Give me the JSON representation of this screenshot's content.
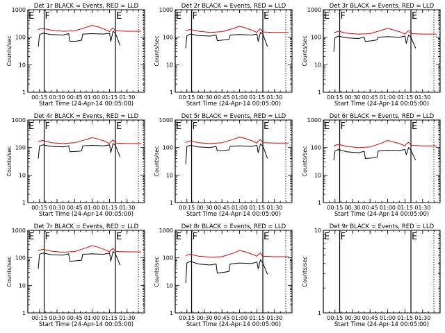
{
  "chart_data": [
    {
      "type": "line",
      "title": "Det 1r  BLACK = Events, RED = LLD",
      "xlabel": "Start Time (24-Apr-14 00:05:00)",
      "ylabel": "Counts/sec",
      "xlim": [
        "00:05",
        "01:45"
      ],
      "ylim": [
        1,
        1000
      ],
      "yscale": "log",
      "x_ticks": [
        "00:15",
        "00:30",
        "00:45",
        "01:00",
        "01:15",
        "01:30"
      ],
      "y_ticks": [
        "1",
        "10",
        "100",
        "1000"
      ],
      "markers": [
        {
          "label": "E",
          "time": "00:05"
        },
        {
          "label": "F",
          "time": "00:19"
        },
        {
          "label": "E",
          "time": "01:20"
        }
      ],
      "series": [
        {
          "name": "Events",
          "color": "#000000",
          "x": [
            "00:14",
            "00:15",
            "00:18",
            "00:25",
            "00:35",
            "00:40",
            "00:41",
            "00:47",
            "00:51",
            "00:52",
            "01:00",
            "01:10",
            "01:15",
            "01:16",
            "01:18",
            "01:20",
            "01:24"
          ],
          "y": [
            45,
            125,
            140,
            125,
            120,
            135,
            70,
            72,
            78,
            130,
            135,
            130,
            140,
            70,
            165,
            140,
            50
          ]
        },
        {
          "name": "LLD",
          "color": "#dd0000",
          "x": [
            "00:14",
            "00:15",
            "00:18",
            "00:25",
            "00:35",
            "00:45",
            "00:55",
            "01:00",
            "01:05",
            "01:10",
            "01:15",
            "01:16",
            "01:18",
            "01:20",
            "01:30",
            "01:42"
          ],
          "y": [
            190,
            200,
            210,
            180,
            165,
            170,
            230,
            270,
            240,
            200,
            160,
            190,
            220,
            170,
            165,
            165
          ]
        }
      ]
    },
    {
      "type": "line",
      "title": "Det 2r  BLACK = Events, RED = LLD",
      "xlabel": "Start Time (24-Apr-14 00:05:00)",
      "ylabel": "Counts/sec",
      "xlim": [
        "00:05",
        "01:45"
      ],
      "ylim": [
        1,
        1000
      ],
      "yscale": "log",
      "x_ticks": [
        "00:15",
        "00:30",
        "00:45",
        "01:00",
        "01:15",
        "01:30"
      ],
      "y_ticks": [
        "1",
        "10",
        "100",
        "1000"
      ],
      "markers": [
        {
          "label": "E",
          "time": "00:05"
        },
        {
          "label": "F",
          "time": "00:19"
        },
        {
          "label": "E",
          "time": "01:20"
        }
      ],
      "series": [
        {
          "name": "Events",
          "color": "#000000",
          "x": [
            "00:14",
            "00:15",
            "00:18",
            "00:25",
            "00:35",
            "00:40",
            "00:41",
            "00:47",
            "00:51",
            "00:52",
            "01:00",
            "01:10",
            "01:15",
            "01:16",
            "01:18",
            "01:20",
            "01:24"
          ],
          "y": [
            40,
            115,
            130,
            115,
            110,
            120,
            75,
            80,
            85,
            120,
            125,
            120,
            130,
            70,
            150,
            130,
            45
          ]
        },
        {
          "name": "LLD",
          "color": "#dd0000",
          "x": [
            "00:14",
            "00:15",
            "00:18",
            "00:25",
            "00:35",
            "00:45",
            "00:55",
            "01:00",
            "01:05",
            "01:10",
            "01:15",
            "01:16",
            "01:18",
            "01:20",
            "01:30",
            "01:42"
          ],
          "y": [
            170,
            180,
            190,
            165,
            150,
            160,
            210,
            250,
            220,
            185,
            150,
            175,
            200,
            155,
            150,
            150
          ]
        }
      ]
    },
    {
      "type": "line",
      "title": "Det 3r  BLACK = Events, RED = LLD",
      "xlabel": "Start Time (24-Apr-14 00:05:00)",
      "ylabel": "Counts/sec",
      "xlim": [
        "00:05",
        "01:45"
      ],
      "ylim": [
        1,
        1000
      ],
      "yscale": "log",
      "x_ticks": [
        "00:15",
        "00:30",
        "00:45",
        "01:00",
        "01:15",
        "01:30"
      ],
      "y_ticks": [
        "1",
        "10",
        "100",
        "1000"
      ],
      "markers": [
        {
          "label": "E",
          "time": "00:05"
        },
        {
          "label": "F",
          "time": "00:19"
        },
        {
          "label": "E",
          "time": "01:20"
        }
      ],
      "series": [
        {
          "name": "Events",
          "color": "#000000",
          "x": [
            "00:14",
            "00:15",
            "00:18",
            "00:25",
            "00:35",
            "00:40",
            "00:41",
            "00:47",
            "00:51",
            "00:52",
            "01:00",
            "01:10",
            "01:15",
            "01:16",
            "01:18",
            "01:20",
            "01:24"
          ],
          "y": [
            30,
            95,
            110,
            95,
            90,
            100,
            70,
            75,
            80,
            100,
            105,
            100,
            110,
            60,
            120,
            100,
            40
          ]
        },
        {
          "name": "LLD",
          "color": "#dd0000",
          "x": [
            "00:14",
            "00:15",
            "00:18",
            "00:25",
            "00:35",
            "00:45",
            "00:55",
            "01:00",
            "01:05",
            "01:10",
            "01:15",
            "01:16",
            "01:18",
            "01:20",
            "01:30",
            "01:42"
          ],
          "y": [
            140,
            150,
            165,
            140,
            130,
            135,
            180,
            210,
            185,
            160,
            130,
            150,
            175,
            135,
            130,
            130
          ]
        }
      ]
    },
    {
      "type": "line",
      "title": "Det 4r  BLACK = Events, RED = LLD",
      "xlabel": "Start Time (24-Apr-14 00:05:00)",
      "ylabel": "Counts/sec",
      "xlim": [
        "00:05",
        "01:45"
      ],
      "ylim": [
        1,
        1000
      ],
      "yscale": "log",
      "x_ticks": [
        "00:15",
        "00:30",
        "00:45",
        "01:00",
        "01:15",
        "01:30"
      ],
      "y_ticks": [
        "1",
        "10",
        "100",
        "1000"
      ],
      "markers": [
        {
          "label": "E",
          "time": "00:05"
        },
        {
          "label": "F",
          "time": "00:19"
        },
        {
          "label": "E",
          "time": "01:20"
        }
      ],
      "series": [
        {
          "name": "Events",
          "color": "#000000",
          "x": [
            "00:14",
            "00:15",
            "00:18",
            "00:25",
            "00:35",
            "00:40",
            "00:41",
            "00:47",
            "00:51",
            "00:52",
            "01:00",
            "01:10",
            "01:15",
            "01:16",
            "01:18",
            "01:20",
            "01:24"
          ],
          "y": [
            40,
            115,
            125,
            110,
            105,
            115,
            70,
            72,
            75,
            115,
            120,
            115,
            125,
            65,
            140,
            120,
            45
          ]
        },
        {
          "name": "LLD",
          "color": "#dd0000",
          "x": [
            "00:14",
            "00:15",
            "00:18",
            "00:25",
            "00:35",
            "00:45",
            "00:55",
            "01:00",
            "01:05",
            "01:10",
            "01:15",
            "01:16",
            "01:18",
            "01:20",
            "01:30",
            "01:42"
          ],
          "y": [
            160,
            170,
            180,
            150,
            140,
            150,
            195,
            230,
            205,
            175,
            140,
            165,
            190,
            145,
            140,
            140
          ]
        }
      ]
    },
    {
      "type": "line",
      "title": "Det 5r  BLACK = Events, RED = LLD",
      "xlabel": "Start Time (24-Apr-14 00:05:00)",
      "ylabel": "Counts/sec",
      "xlim": [
        "00:05",
        "01:45"
      ],
      "ylim": [
        1,
        1000
      ],
      "yscale": "log",
      "x_ticks": [
        "00:15",
        "00:30",
        "00:45",
        "01:00",
        "01:15",
        "01:30"
      ],
      "y_ticks": [
        "1",
        "10",
        "100",
        "1000"
      ],
      "markers": [
        {
          "label": "E",
          "time": "00:05"
        },
        {
          "label": "F",
          "time": "00:19"
        },
        {
          "label": "E",
          "time": "01:20"
        }
      ],
      "series": [
        {
          "name": "Events",
          "color": "#000000",
          "x": [
            "00:14",
            "00:15",
            "00:18",
            "00:25",
            "00:35",
            "00:40",
            "00:41",
            "00:47",
            "00:51",
            "00:52",
            "01:00",
            "01:10",
            "01:15",
            "01:16",
            "01:18",
            "01:20",
            "01:24"
          ],
          "y": [
            25,
            110,
            120,
            105,
            100,
            110,
            75,
            78,
            82,
            110,
            115,
            110,
            120,
            65,
            135,
            115,
            40
          ]
        },
        {
          "name": "LLD",
          "color": "#dd0000",
          "x": [
            "00:14",
            "00:15",
            "00:18",
            "00:25",
            "00:35",
            "00:45",
            "00:55",
            "01:00",
            "01:05",
            "01:10",
            "01:15",
            "01:16",
            "01:18",
            "01:20",
            "01:30",
            "01:42"
          ],
          "y": [
            150,
            160,
            175,
            150,
            140,
            150,
            200,
            240,
            215,
            180,
            145,
            170,
            195,
            150,
            145,
            145
          ]
        }
      ]
    },
    {
      "type": "line",
      "title": "Det 6r  BLACK = Events, RED = LLD",
      "xlabel": "Start Time (24-Apr-14 00:05:00)",
      "ylabel": "Counts/sec",
      "xlim": [
        "00:05",
        "01:45"
      ],
      "ylim": [
        1,
        1000
      ],
      "yscale": "log",
      "x_ticks": [
        "00:15",
        "00:30",
        "00:45",
        "01:00",
        "01:15",
        "01:30"
      ],
      "y_ticks": [
        "1",
        "10",
        "100",
        "1000"
      ],
      "markers": [
        {
          "label": "E",
          "time": "00:05"
        },
        {
          "label": "F",
          "time": "00:19"
        },
        {
          "label": "E",
          "time": "01:20"
        }
      ],
      "series": [
        {
          "name": "Events",
          "color": "#000000",
          "x": [
            "00:14",
            "00:15",
            "00:18",
            "00:25",
            "00:35",
            "00:40",
            "00:41",
            "00:47",
            "00:51",
            "00:52",
            "01:00",
            "01:10",
            "01:15",
            "01:16",
            "01:18",
            "01:20",
            "01:24"
          ],
          "y": [
            35,
            75,
            85,
            70,
            65,
            72,
            40,
            42,
            45,
            75,
            80,
            78,
            85,
            55,
            100,
            80,
            35
          ]
        },
        {
          "name": "LLD",
          "color": "#dd0000",
          "x": [
            "00:14",
            "00:15",
            "00:18",
            "00:25",
            "00:35",
            "00:45",
            "00:55",
            "01:00",
            "01:05",
            "01:10",
            "01:15",
            "01:16",
            "01:18",
            "01:20",
            "01:30",
            "01:42"
          ],
          "y": [
            110,
            120,
            130,
            110,
            100,
            105,
            145,
            180,
            160,
            140,
            115,
            135,
            155,
            120,
            115,
            115
          ]
        }
      ]
    },
    {
      "type": "line",
      "title": "Det 7r  BLACK = Events, RED = LLD",
      "xlabel": "Start Time (24-Apr-14 00:05:00)",
      "ylabel": "Counts/sec",
      "xlim": [
        "00:05",
        "01:45"
      ],
      "ylim": [
        1,
        1000
      ],
      "yscale": "log",
      "x_ticks": [
        "00:15",
        "00:30",
        "00:45",
        "01:00",
        "01:15",
        "01:30"
      ],
      "y_ticks": [
        "1",
        "10",
        "100",
        "1000"
      ],
      "markers": [
        {
          "label": "E",
          "time": "00:05"
        },
        {
          "label": "F",
          "time": "00:19"
        },
        {
          "label": "E",
          "time": "01:20"
        }
      ],
      "series": [
        {
          "name": "Events",
          "color": "#000000",
          "x": [
            "00:14",
            "00:15",
            "00:18",
            "00:25",
            "00:35",
            "00:40",
            "00:41",
            "00:47",
            "00:51",
            "00:52",
            "01:00",
            "01:10",
            "01:15",
            "01:16",
            "01:18",
            "01:20",
            "01:24"
          ],
          "y": [
            40,
            135,
            150,
            130,
            125,
            140,
            75,
            78,
            82,
            135,
            140,
            135,
            150,
            75,
            170,
            140,
            55
          ]
        },
        {
          "name": "LLD",
          "color": "#dd0000",
          "x": [
            "00:14",
            "00:15",
            "00:18",
            "00:25",
            "00:35",
            "00:45",
            "00:55",
            "01:00",
            "01:05",
            "01:10",
            "01:15",
            "01:16",
            "01:18",
            "01:20",
            "01:30",
            "01:42"
          ],
          "y": [
            180,
            190,
            205,
            175,
            160,
            170,
            230,
            275,
            245,
            205,
            165,
            190,
            220,
            170,
            165,
            165
          ]
        }
      ]
    },
    {
      "type": "line",
      "title": "Det 8r  BLACK = Events, RED = LLD",
      "xlabel": "Start Time (24-Apr-14 00:05:00)",
      "ylabel": "Counts/sec",
      "xlim": [
        "00:05",
        "01:45"
      ],
      "ylim": [
        1,
        1000
      ],
      "yscale": "log",
      "x_ticks": [
        "00:15",
        "00:30",
        "00:45",
        "01:00",
        "01:15",
        "01:30"
      ],
      "y_ticks": [
        "1",
        "10",
        "100",
        "1000"
      ],
      "markers": [
        {
          "label": "E",
          "time": "00:05"
        },
        {
          "label": "F",
          "time": "00:19"
        },
        {
          "label": "E",
          "time": "01:20"
        }
      ],
      "series": [
        {
          "name": "Events",
          "color": "#000000",
          "x": [
            "00:14",
            "00:15",
            "00:18",
            "00:25",
            "00:35",
            "00:40",
            "00:41",
            "00:47",
            "00:51",
            "00:52",
            "01:00",
            "01:10",
            "01:15",
            "01:16",
            "01:18",
            "01:20",
            "01:24"
          ],
          "y": [
            12,
            65,
            75,
            60,
            55,
            60,
            28,
            30,
            32,
            60,
            65,
            62,
            70,
            40,
            85,
            65,
            25
          ]
        },
        {
          "name": "LLD",
          "color": "#dd0000",
          "x": [
            "00:14",
            "00:15",
            "00:18",
            "00:25",
            "00:35",
            "00:45",
            "00:55",
            "01:00",
            "01:05",
            "01:10",
            "01:15",
            "01:16",
            "01:18",
            "01:20",
            "01:30",
            "01:42"
          ],
          "y": [
            120,
            125,
            135,
            115,
            105,
            110,
            150,
            185,
            165,
            140,
            115,
            130,
            150,
            115,
            110,
            110
          ]
        }
      ]
    },
    {
      "type": "line",
      "title": "Det 9r  BLACK = Events, RED = LLD",
      "xlabel": "Start Time (24-Apr-14 00:05:00)",
      "ylabel": "Counts/sec",
      "xlim": [
        "00:05",
        "01:45"
      ],
      "ylim": [
        1,
        10
      ],
      "yscale": "log",
      "x_ticks": [
        "00:15",
        "00:30",
        "00:45",
        "01:00",
        "01:15",
        "01:30"
      ],
      "y_ticks": [
        "1",
        "10"
      ],
      "markers": [
        {
          "label": "E",
          "time": "00:05"
        },
        {
          "label": "F",
          "time": "00:19"
        },
        {
          "label": "E",
          "time": "01:20"
        }
      ],
      "series": []
    }
  ]
}
